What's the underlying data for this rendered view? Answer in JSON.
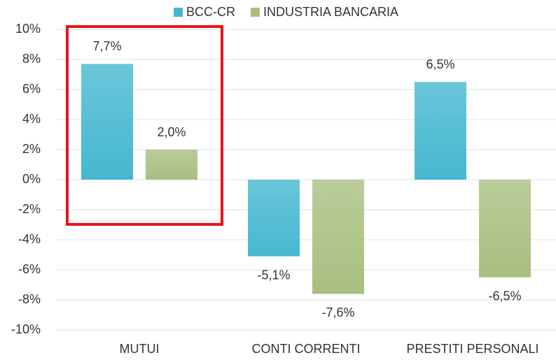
{
  "chart_data": {
    "type": "bar",
    "categories": [
      "MUTUI",
      "CONTI CORRENTI",
      "PRESTITI PERSONALI"
    ],
    "series": [
      {
        "name": "BCC-CR",
        "color": "#45b8d0",
        "values": [
          7.7,
          -5.1,
          6.5
        ],
        "value_labels": [
          "7,7%",
          "-5,1%",
          "6,5%"
        ]
      },
      {
        "name": "INDUSTRIA BANCARIA",
        "color": "#a9bf80",
        "values": [
          2.0,
          -7.6,
          -6.5
        ],
        "value_labels": [
          "2,0%",
          "-7,6%",
          "-6,5%"
        ]
      }
    ],
    "ylim": [
      -10,
      10
    ],
    "yticks": [
      {
        "value": -10,
        "label": "-10%"
      },
      {
        "value": -8,
        "label": "-8%"
      },
      {
        "value": -6,
        "label": "-6%"
      },
      {
        "value": -4,
        "label": "-4%"
      },
      {
        "value": -2,
        "label": "-2%"
      },
      {
        "value": 0,
        "label": "0%"
      },
      {
        "value": 2,
        "label": "2%"
      },
      {
        "value": 4,
        "label": "4%"
      },
      {
        "value": 6,
        "label": "6%"
      },
      {
        "value": 8,
        "label": "8%"
      },
      {
        "value": 10,
        "label": "10%"
      }
    ],
    "grid": true,
    "legend": "top"
  }
}
